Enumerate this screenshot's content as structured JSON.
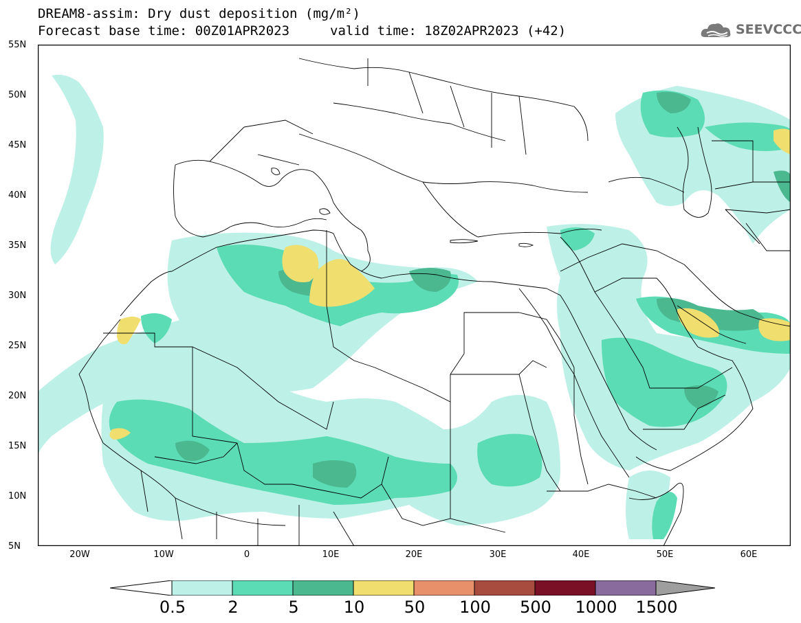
{
  "header": {
    "title": "DREAM8-assim: Dry dust deposition (mg/m²)",
    "base_time": "Forecast base time: 00Z01APR2023",
    "valid_time": "valid time: 18Z02APR2023 (+42)"
  },
  "logo": {
    "text": "SEEVCCC",
    "icon": "cloud-logo-icon"
  },
  "axes": {
    "lat_labels": [
      "55N",
      "50N",
      "45N",
      "40N",
      "35N",
      "30N",
      "25N",
      "20N",
      "15N",
      "10N",
      "5N"
    ],
    "lon_labels": [
      "20W",
      "10W",
      "0",
      "10E",
      "20E",
      "30E",
      "40E",
      "50E",
      "60E"
    ]
  },
  "colorbar": {
    "labels": [
      "0.5",
      "2",
      "5",
      "10",
      "50",
      "100",
      "500",
      "1000",
      "1500"
    ],
    "colors": [
      "#bdf0e7",
      "#5bdcb5",
      "#4bb890",
      "#f0de6e",
      "#e8906a",
      "#a84c40",
      "#7a1026",
      "#8a6b9e",
      "#9e9e9e"
    ]
  },
  "map_data": {
    "extent": {
      "lon_min": -25,
      "lon_max": 65,
      "lat_min": 5,
      "lat_max": 55
    },
    "grid": false,
    "background_color": "#ffffff",
    "boundary_color": "#000000"
  }
}
